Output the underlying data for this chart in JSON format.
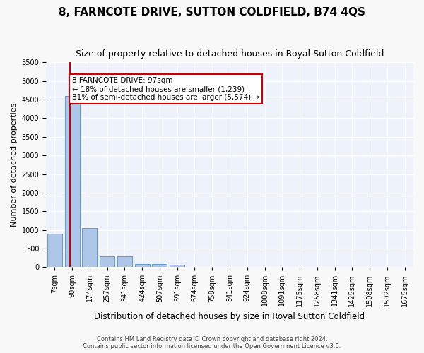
{
  "title": "8, FARNCOTE DRIVE, SUTTON COLDFIELD, B74 4QS",
  "subtitle": "Size of property relative to detached houses in Royal Sutton Coldfield",
  "xlabel": "Distribution of detached houses by size in Royal Sutton Coldfield",
  "ylabel": "Number of detached properties",
  "bin_labels": [
    "7sqm",
    "90sqm",
    "174sqm",
    "257sqm",
    "341sqm",
    "424sqm",
    "507sqm",
    "591sqm",
    "674sqm",
    "758sqm",
    "841sqm",
    "924sqm",
    "1008sqm",
    "1091sqm",
    "1175sqm",
    "1258sqm",
    "1341sqm",
    "1425sqm",
    "1508sqm",
    "1592sqm",
    "1675sqm"
  ],
  "bar_heights": [
    900,
    4600,
    1060,
    300,
    300,
    90,
    90,
    60,
    0,
    0,
    0,
    0,
    0,
    0,
    0,
    0,
    0,
    0,
    0,
    0,
    0
  ],
  "bar_color": "#aec6e8",
  "bar_edge_color": "#5b9bd5",
  "red_line_x": 0.87,
  "annotation_text": "8 FARNCOTE DRIVE: 97sqm\n← 18% of detached houses are smaller (1,239)\n81% of semi-detached houses are larger (5,574) →",
  "annotation_box_color": "#ffffff",
  "annotation_box_edge": "#cc0000",
  "ylim": [
    0,
    5500
  ],
  "yticks": [
    0,
    500,
    1000,
    1500,
    2000,
    2500,
    3000,
    3500,
    4000,
    4500,
    5000,
    5500
  ],
  "footer1": "Contains HM Land Registry data © Crown copyright and database right 2024.",
  "footer2": "Contains public sector information licensed under the Open Government Licence v3.0.",
  "bg_color": "#eef3fb",
  "grid_color": "#ffffff",
  "title_fontsize": 11,
  "subtitle_fontsize": 9,
  "axis_fontsize": 8,
  "tick_fontsize": 7
}
